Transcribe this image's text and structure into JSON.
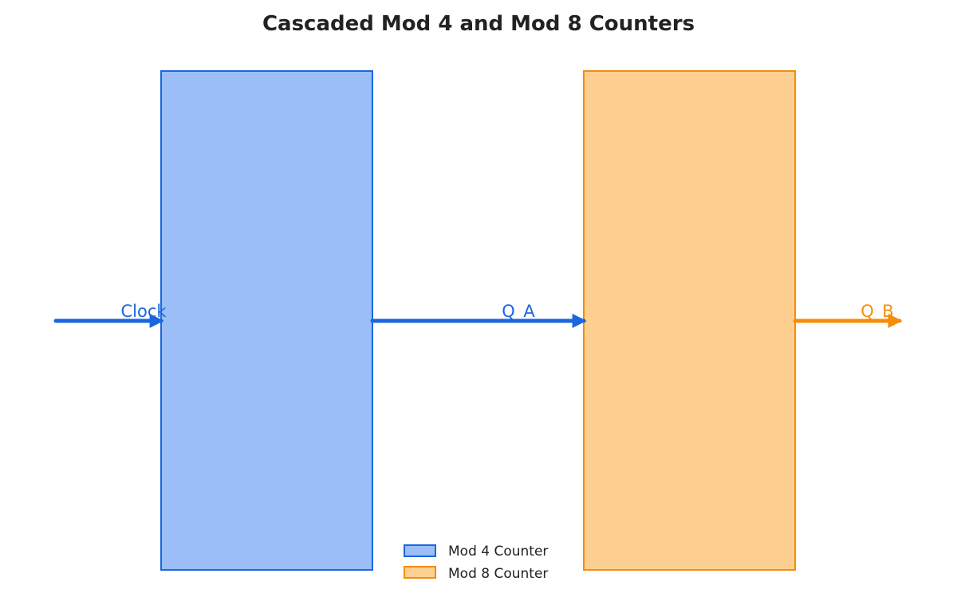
{
  "title": "Cascaded Mod 4 and Mod 8 Counters",
  "colors": {
    "mod4_stroke": "#1a66e0",
    "mod4_fill": "#9bbef7",
    "mod8_stroke": "#f58c0a",
    "mod8_fill": "#fdd092",
    "title": "#222222"
  },
  "blocks": {
    "mod4": {
      "label": "Mod 4 Counter"
    },
    "mod8": {
      "label": "Mod 8 Counter"
    }
  },
  "signals": {
    "clock": "Clock",
    "qa": "Q_A",
    "qb": "Q_B"
  },
  "legend": {
    "items": [
      {
        "label": "Mod 4 Counter"
      },
      {
        "label": "Mod 8 Counter"
      }
    ]
  }
}
